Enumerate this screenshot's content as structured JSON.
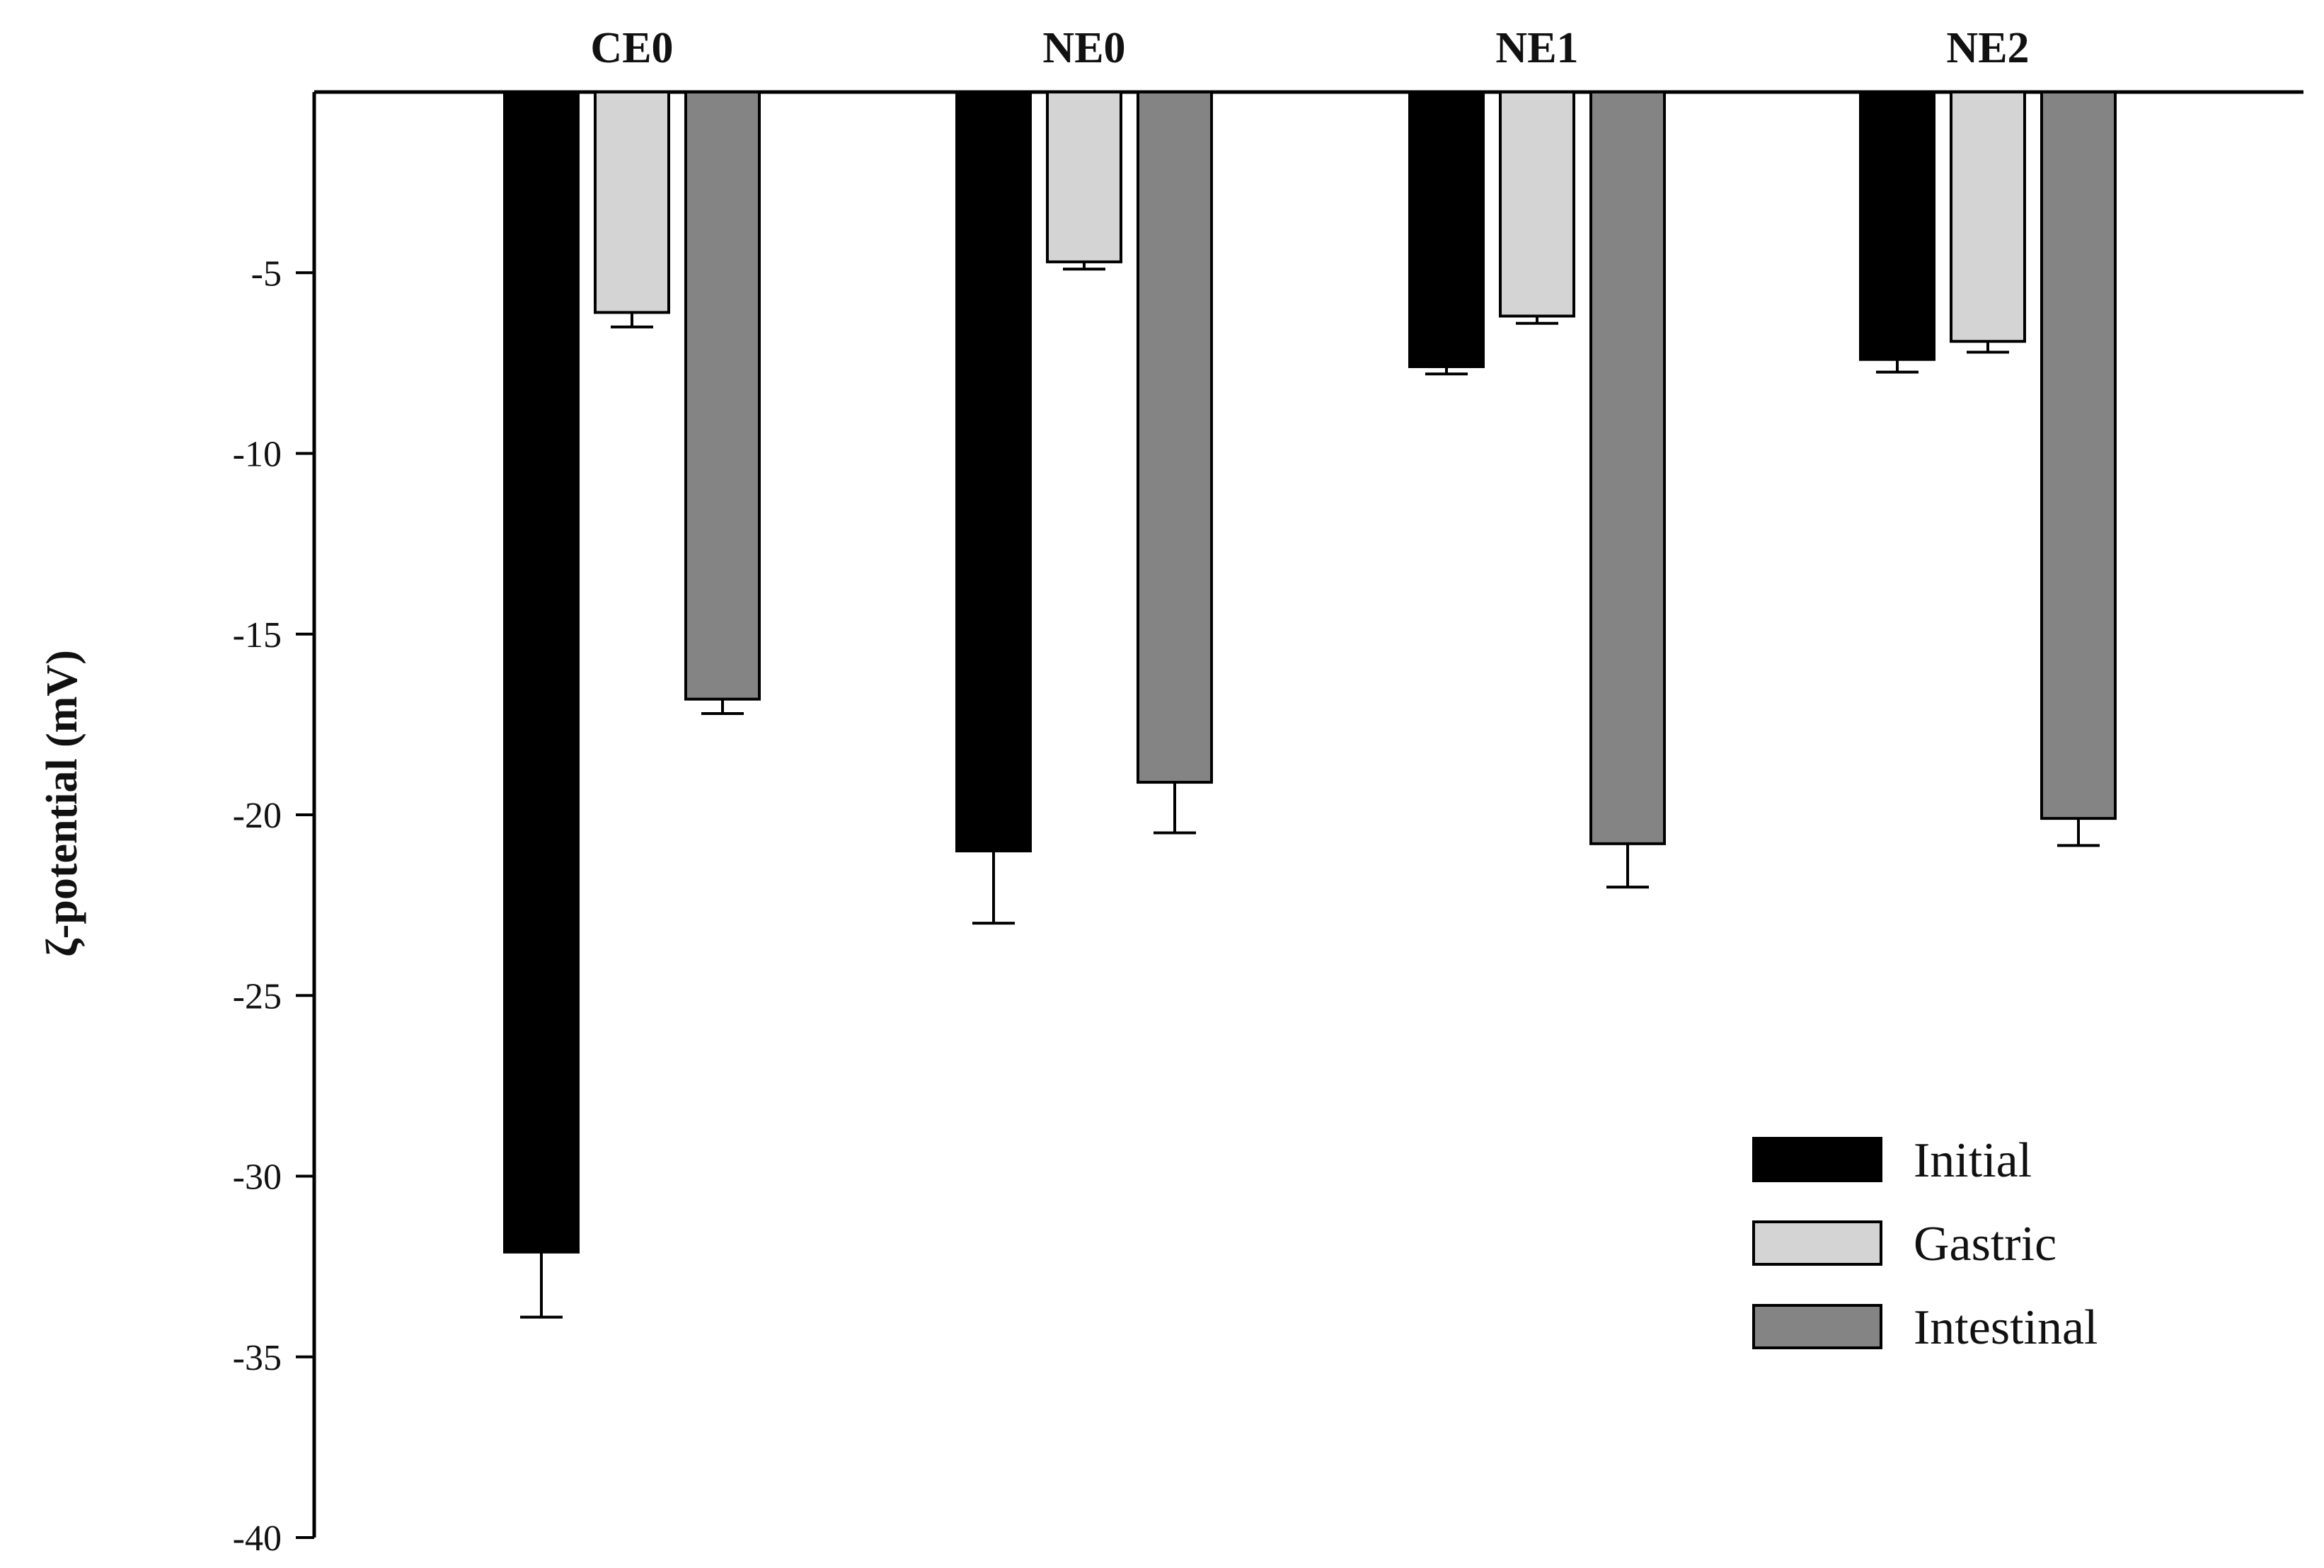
{
  "chart_data": {
    "type": "bar",
    "title": "",
    "xlabel": "",
    "ylabel": "ζ-potential (mV)",
    "categories": [
      "CE0",
      "NE0",
      "NE1",
      "NE2"
    ],
    "x_axis_position": "top",
    "ylim": [
      -40,
      0
    ],
    "yticks": [
      -5,
      -10,
      -15,
      -20,
      -25,
      -30,
      -35,
      -40
    ],
    "grid": false,
    "legend_position": "bottom-right",
    "series": [
      {
        "name": "Initial",
        "color": "#000000",
        "values": [
          -32.1,
          -21.0,
          -7.6,
          -7.4
        ],
        "errors": [
          1.8,
          2.0,
          0.2,
          0.35
        ]
      },
      {
        "name": "Gastric",
        "color": "#d4d4d4",
        "values": [
          -6.1,
          -4.7,
          -6.2,
          -6.9
        ],
        "errors": [
          0.4,
          0.2,
          0.2,
          0.3
        ]
      },
      {
        "name": "Intestinal",
        "color": "#848484",
        "values": [
          -16.8,
          -19.1,
          -20.8,
          -20.1
        ],
        "errors": [
          0.4,
          1.4,
          1.2,
          0.75
        ]
      }
    ]
  }
}
